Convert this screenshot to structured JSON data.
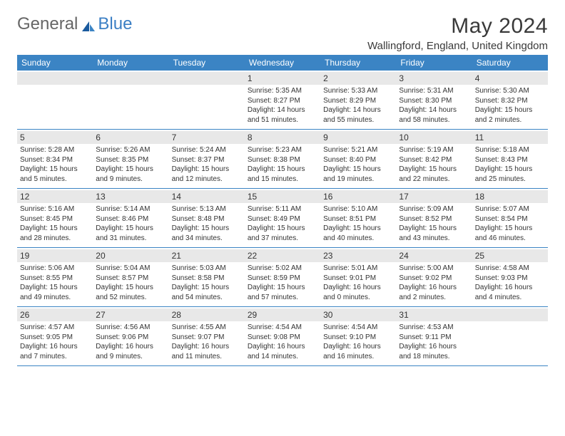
{
  "brand": {
    "part1": "General",
    "part2": "Blue"
  },
  "title": "May 2024",
  "location": "Wallingford, England, United Kingdom",
  "colors": {
    "header_bg": "#3b84c4",
    "header_text": "#ffffff",
    "daynum_bg": "#e8e8e8",
    "border": "#3b84c4",
    "text": "#333333",
    "background": "#ffffff"
  },
  "day_labels": [
    "Sunday",
    "Monday",
    "Tuesday",
    "Wednesday",
    "Thursday",
    "Friday",
    "Saturday"
  ],
  "weeks": [
    [
      {
        "n": "",
        "sunrise": "",
        "sunset": "",
        "daylight": ""
      },
      {
        "n": "",
        "sunrise": "",
        "sunset": "",
        "daylight": ""
      },
      {
        "n": "",
        "sunrise": "",
        "sunset": "",
        "daylight": ""
      },
      {
        "n": "1",
        "sunrise": "Sunrise: 5:35 AM",
        "sunset": "Sunset: 8:27 PM",
        "daylight": "Daylight: 14 hours and 51 minutes."
      },
      {
        "n": "2",
        "sunrise": "Sunrise: 5:33 AM",
        "sunset": "Sunset: 8:29 PM",
        "daylight": "Daylight: 14 hours and 55 minutes."
      },
      {
        "n": "3",
        "sunrise": "Sunrise: 5:31 AM",
        "sunset": "Sunset: 8:30 PM",
        "daylight": "Daylight: 14 hours and 58 minutes."
      },
      {
        "n": "4",
        "sunrise": "Sunrise: 5:30 AM",
        "sunset": "Sunset: 8:32 PM",
        "daylight": "Daylight: 15 hours and 2 minutes."
      }
    ],
    [
      {
        "n": "5",
        "sunrise": "Sunrise: 5:28 AM",
        "sunset": "Sunset: 8:34 PM",
        "daylight": "Daylight: 15 hours and 5 minutes."
      },
      {
        "n": "6",
        "sunrise": "Sunrise: 5:26 AM",
        "sunset": "Sunset: 8:35 PM",
        "daylight": "Daylight: 15 hours and 9 minutes."
      },
      {
        "n": "7",
        "sunrise": "Sunrise: 5:24 AM",
        "sunset": "Sunset: 8:37 PM",
        "daylight": "Daylight: 15 hours and 12 minutes."
      },
      {
        "n": "8",
        "sunrise": "Sunrise: 5:23 AM",
        "sunset": "Sunset: 8:38 PM",
        "daylight": "Daylight: 15 hours and 15 minutes."
      },
      {
        "n": "9",
        "sunrise": "Sunrise: 5:21 AM",
        "sunset": "Sunset: 8:40 PM",
        "daylight": "Daylight: 15 hours and 19 minutes."
      },
      {
        "n": "10",
        "sunrise": "Sunrise: 5:19 AM",
        "sunset": "Sunset: 8:42 PM",
        "daylight": "Daylight: 15 hours and 22 minutes."
      },
      {
        "n": "11",
        "sunrise": "Sunrise: 5:18 AM",
        "sunset": "Sunset: 8:43 PM",
        "daylight": "Daylight: 15 hours and 25 minutes."
      }
    ],
    [
      {
        "n": "12",
        "sunrise": "Sunrise: 5:16 AM",
        "sunset": "Sunset: 8:45 PM",
        "daylight": "Daylight: 15 hours and 28 minutes."
      },
      {
        "n": "13",
        "sunrise": "Sunrise: 5:14 AM",
        "sunset": "Sunset: 8:46 PM",
        "daylight": "Daylight: 15 hours and 31 minutes."
      },
      {
        "n": "14",
        "sunrise": "Sunrise: 5:13 AM",
        "sunset": "Sunset: 8:48 PM",
        "daylight": "Daylight: 15 hours and 34 minutes."
      },
      {
        "n": "15",
        "sunrise": "Sunrise: 5:11 AM",
        "sunset": "Sunset: 8:49 PM",
        "daylight": "Daylight: 15 hours and 37 minutes."
      },
      {
        "n": "16",
        "sunrise": "Sunrise: 5:10 AM",
        "sunset": "Sunset: 8:51 PM",
        "daylight": "Daylight: 15 hours and 40 minutes."
      },
      {
        "n": "17",
        "sunrise": "Sunrise: 5:09 AM",
        "sunset": "Sunset: 8:52 PM",
        "daylight": "Daylight: 15 hours and 43 minutes."
      },
      {
        "n": "18",
        "sunrise": "Sunrise: 5:07 AM",
        "sunset": "Sunset: 8:54 PM",
        "daylight": "Daylight: 15 hours and 46 minutes."
      }
    ],
    [
      {
        "n": "19",
        "sunrise": "Sunrise: 5:06 AM",
        "sunset": "Sunset: 8:55 PM",
        "daylight": "Daylight: 15 hours and 49 minutes."
      },
      {
        "n": "20",
        "sunrise": "Sunrise: 5:04 AM",
        "sunset": "Sunset: 8:57 PM",
        "daylight": "Daylight: 15 hours and 52 minutes."
      },
      {
        "n": "21",
        "sunrise": "Sunrise: 5:03 AM",
        "sunset": "Sunset: 8:58 PM",
        "daylight": "Daylight: 15 hours and 54 minutes."
      },
      {
        "n": "22",
        "sunrise": "Sunrise: 5:02 AM",
        "sunset": "Sunset: 8:59 PM",
        "daylight": "Daylight: 15 hours and 57 minutes."
      },
      {
        "n": "23",
        "sunrise": "Sunrise: 5:01 AM",
        "sunset": "Sunset: 9:01 PM",
        "daylight": "Daylight: 16 hours and 0 minutes."
      },
      {
        "n": "24",
        "sunrise": "Sunrise: 5:00 AM",
        "sunset": "Sunset: 9:02 PM",
        "daylight": "Daylight: 16 hours and 2 minutes."
      },
      {
        "n": "25",
        "sunrise": "Sunrise: 4:58 AM",
        "sunset": "Sunset: 9:03 PM",
        "daylight": "Daylight: 16 hours and 4 minutes."
      }
    ],
    [
      {
        "n": "26",
        "sunrise": "Sunrise: 4:57 AM",
        "sunset": "Sunset: 9:05 PM",
        "daylight": "Daylight: 16 hours and 7 minutes."
      },
      {
        "n": "27",
        "sunrise": "Sunrise: 4:56 AM",
        "sunset": "Sunset: 9:06 PM",
        "daylight": "Daylight: 16 hours and 9 minutes."
      },
      {
        "n": "28",
        "sunrise": "Sunrise: 4:55 AM",
        "sunset": "Sunset: 9:07 PM",
        "daylight": "Daylight: 16 hours and 11 minutes."
      },
      {
        "n": "29",
        "sunrise": "Sunrise: 4:54 AM",
        "sunset": "Sunset: 9:08 PM",
        "daylight": "Daylight: 16 hours and 14 minutes."
      },
      {
        "n": "30",
        "sunrise": "Sunrise: 4:54 AM",
        "sunset": "Sunset: 9:10 PM",
        "daylight": "Daylight: 16 hours and 16 minutes."
      },
      {
        "n": "31",
        "sunrise": "Sunrise: 4:53 AM",
        "sunset": "Sunset: 9:11 PM",
        "daylight": "Daylight: 16 hours and 18 minutes."
      },
      {
        "n": "",
        "sunrise": "",
        "sunset": "",
        "daylight": ""
      }
    ]
  ]
}
